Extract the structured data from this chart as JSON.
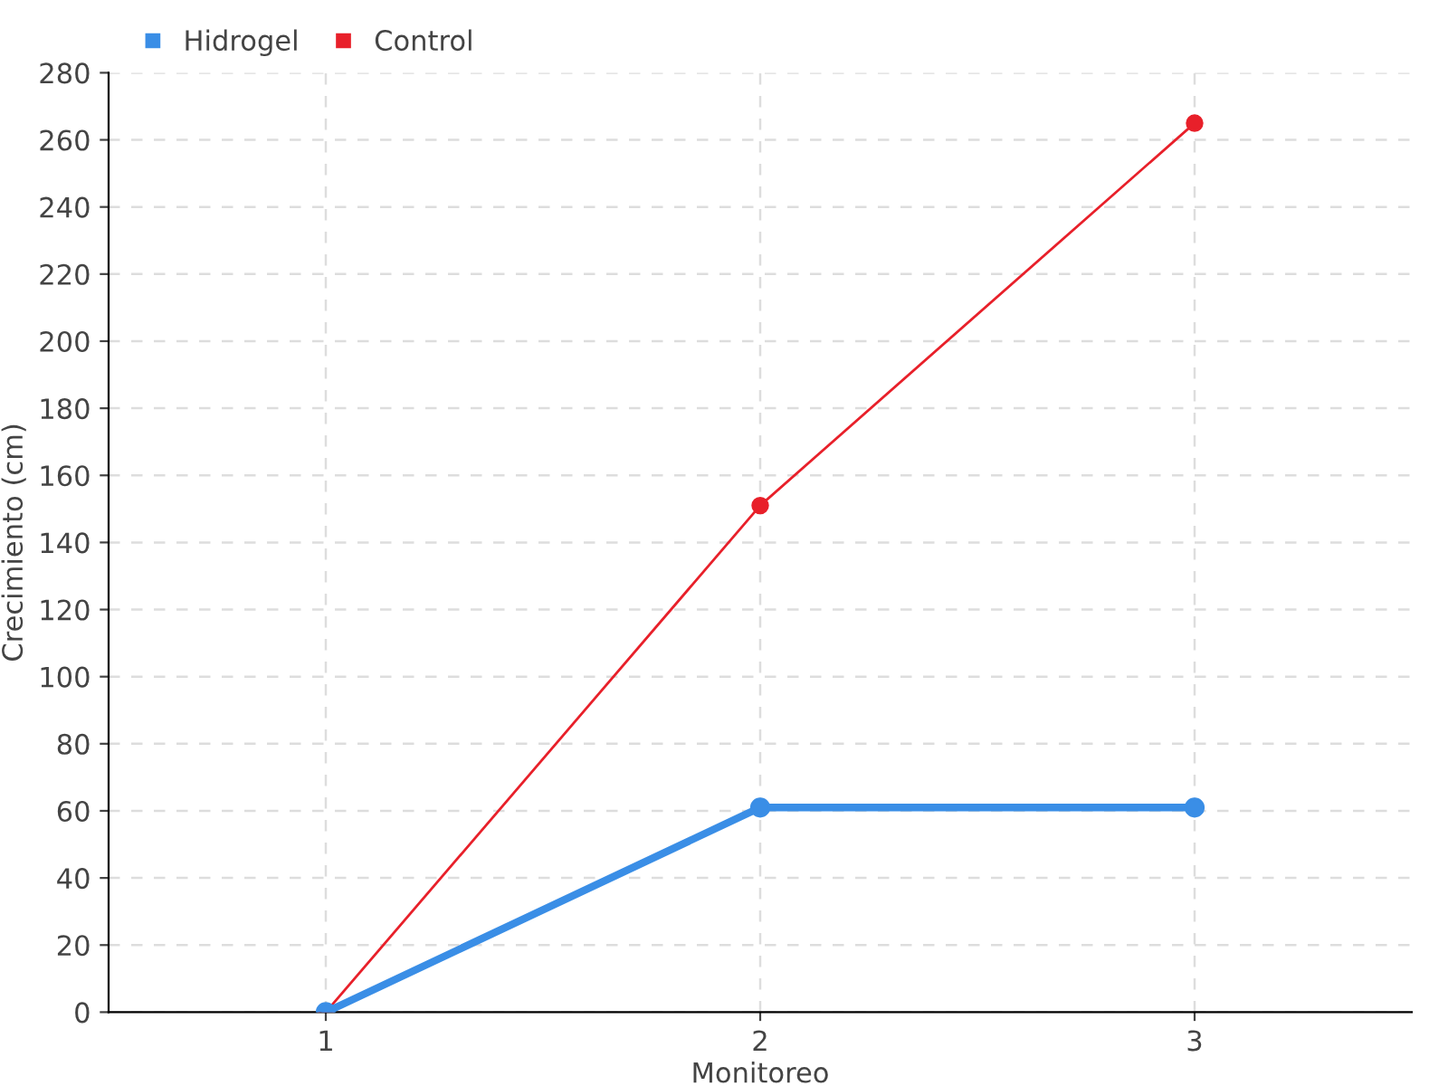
{
  "chart_data": {
    "type": "line",
    "xlabel": "Monitoreo",
    "ylabel": "Crecimiento (cm)",
    "categories": [
      "1",
      "2",
      "3"
    ],
    "series": [
      {
        "name": "Hidrogel",
        "color": "#3a8ee6",
        "values": [
          0,
          61,
          61
        ]
      },
      {
        "name": "Control",
        "color": "#e8202a",
        "values": [
          0,
          151,
          265
        ]
      }
    ],
    "ylim": [
      0,
      280
    ],
    "yticks": [
      0,
      20,
      40,
      60,
      80,
      100,
      120,
      140,
      160,
      180,
      200,
      220,
      240,
      260,
      280
    ],
    "grid": true,
    "legend": "top left",
    "marker": "circle",
    "line_style": "solid"
  }
}
